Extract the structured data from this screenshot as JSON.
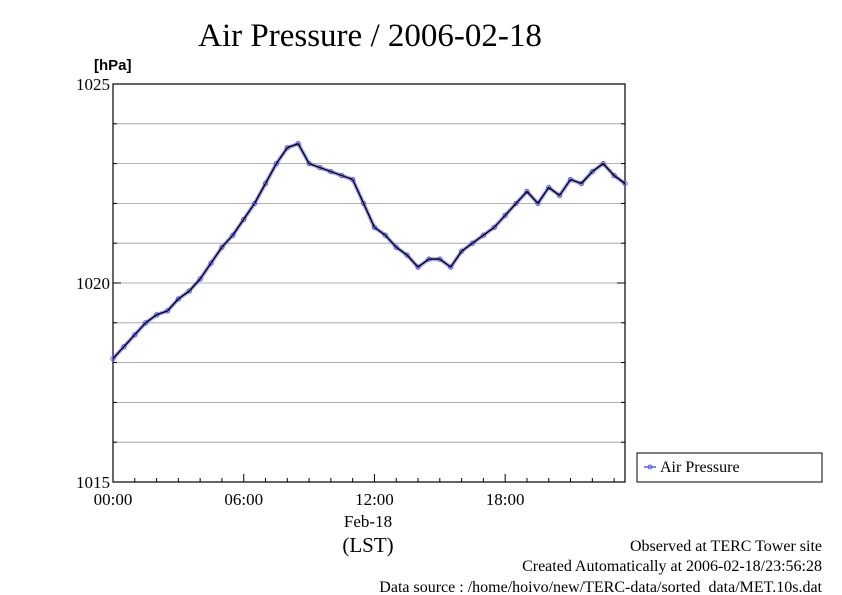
{
  "chart_data": {
    "type": "line",
    "title": "Air Pressure / 2006-02-18",
    "ylabel": "[hPa]",
    "ylim": [
      1015,
      1025
    ],
    "yticks": [
      "1015",
      "1020",
      "1025"
    ],
    "xlim": [
      0,
      23.5
    ],
    "xticks": [
      {
        "h": 0,
        "label": "00:00"
      },
      {
        "h": 6,
        "label": "06:00"
      },
      {
        "h": 12,
        "label": "12:00"
      },
      {
        "h": 18,
        "label": "18:00"
      }
    ],
    "date_label": "Feb-18",
    "xlabel": "(LST)",
    "grid": true,
    "legend_position": "right",
    "colors": {
      "line": "#000000",
      "markers": "#5a5aff"
    },
    "series": [
      {
        "name": "Air Pressure",
        "x": [
          0.0,
          0.5,
          1.0,
          1.5,
          2.0,
          2.5,
          3.0,
          3.5,
          4.0,
          4.5,
          5.0,
          5.5,
          6.0,
          6.5,
          7.0,
          7.5,
          8.0,
          8.5,
          9.0,
          9.5,
          10.0,
          10.5,
          11.0,
          11.5,
          12.0,
          12.5,
          13.0,
          13.5,
          14.0,
          14.5,
          15.0,
          15.5,
          16.0,
          16.5,
          17.0,
          17.5,
          18.0,
          18.5,
          19.0,
          19.5,
          20.0,
          20.5,
          21.0,
          21.5,
          22.0,
          22.5,
          23.0,
          23.5
        ],
        "values": [
          1018.1,
          1018.4,
          1018.7,
          1019.0,
          1019.2,
          1019.3,
          1019.6,
          1019.8,
          1020.1,
          1020.5,
          1020.9,
          1021.2,
          1021.6,
          1022.0,
          1022.5,
          1023.0,
          1023.4,
          1023.5,
          1023.0,
          1022.9,
          1022.8,
          1022.7,
          1022.6,
          1022.0,
          1021.4,
          1021.2,
          1020.9,
          1020.7,
          1020.4,
          1020.6,
          1020.6,
          1020.4,
          1020.8,
          1021.0,
          1021.2,
          1021.4,
          1021.7,
          1022.0,
          1022.3,
          1022.0,
          1022.4,
          1022.2,
          1022.6,
          1022.5,
          1022.8,
          1023.0,
          1022.7,
          1022.5
        ]
      }
    ]
  },
  "footer": {
    "line1": "Observed at TERC Tower site",
    "line2": "Created Automatically at 2006-02-18/23:56:28",
    "line3": "Data source : /home/hoivo/new/TERC-data/sorted  data/MET.10s.dat"
  }
}
